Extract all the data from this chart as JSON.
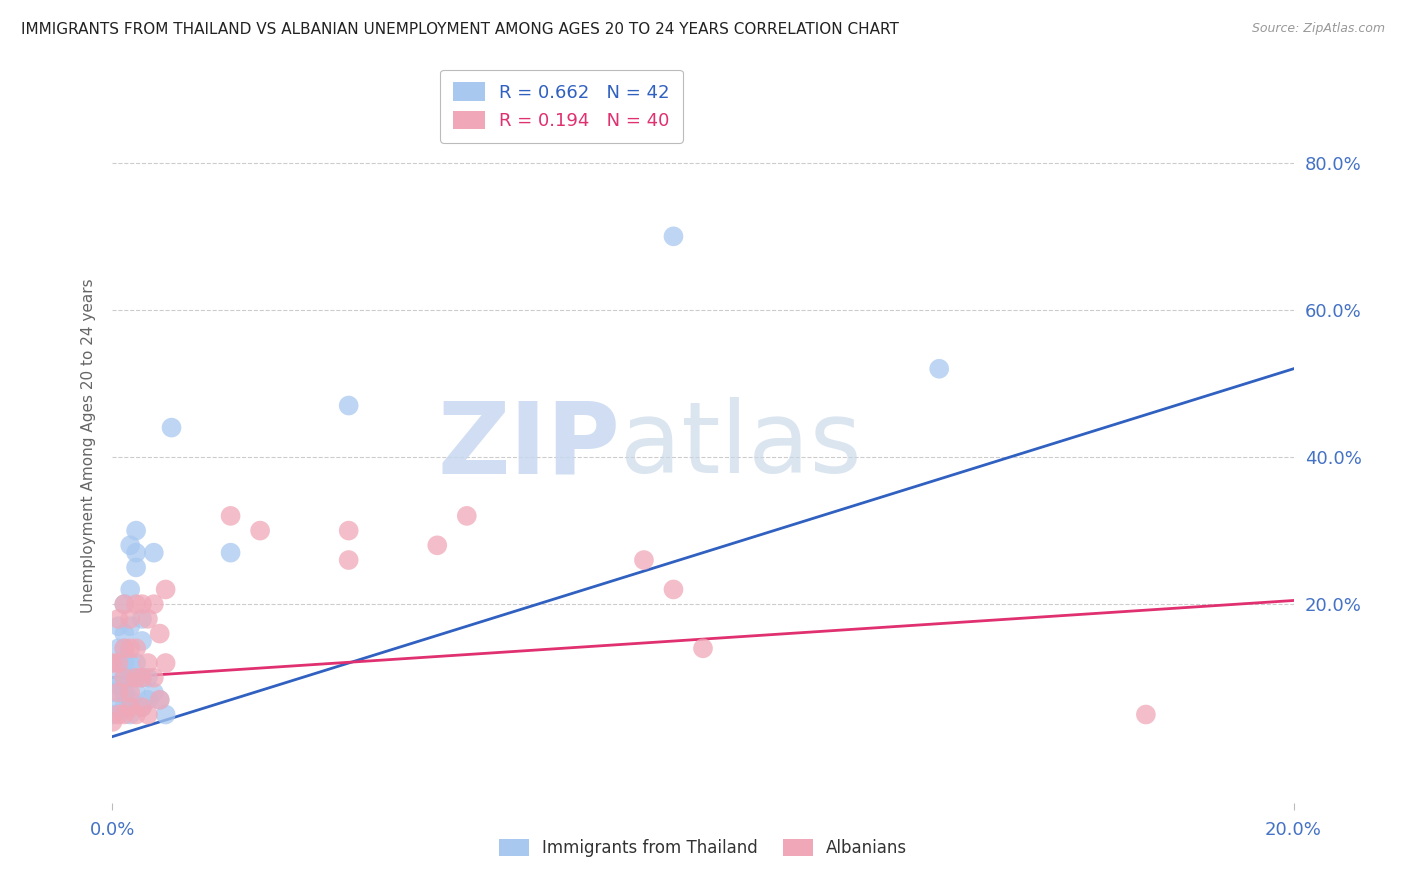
{
  "title": "IMMIGRANTS FROM THAILAND VS ALBANIAN UNEMPLOYMENT AMONG AGES 20 TO 24 YEARS CORRELATION CHART",
  "source": "Source: ZipAtlas.com",
  "ylabel": "Unemployment Among Ages 20 to 24 years",
  "legend1_label": "Immigrants from Thailand",
  "legend2_label": "Albanians",
  "R1": 0.662,
  "N1": 42,
  "R2": 0.194,
  "N2": 40,
  "xlim": [
    0.0,
    0.2
  ],
  "ylim": [
    -0.07,
    0.9
  ],
  "ytick_labels": [
    "20.0%",
    "40.0%",
    "60.0%",
    "80.0%"
  ],
  "ytick_values": [
    0.2,
    0.4,
    0.6,
    0.8
  ],
  "grid_color": "#cccccc",
  "blue_color": "#a8c8f0",
  "pink_color": "#f0a8b8",
  "blue_line_color": "#3060c0",
  "pink_line_color": "#e03070",
  "title_color": "#222222",
  "axis_label_color": "#666666",
  "tick_color": "#4472C4",
  "blue_dots_x": [
    0.0,
    0.0,
    0.001,
    0.001,
    0.001,
    0.001,
    0.001,
    0.001,
    0.002,
    0.002,
    0.002,
    0.002,
    0.002,
    0.002,
    0.002,
    0.003,
    0.003,
    0.003,
    0.003,
    0.003,
    0.003,
    0.003,
    0.004,
    0.004,
    0.004,
    0.004,
    0.004,
    0.005,
    0.005,
    0.005,
    0.005,
    0.006,
    0.006,
    0.007,
    0.007,
    0.008,
    0.009,
    0.01,
    0.02,
    0.04,
    0.095,
    0.14
  ],
  "blue_dots_y": [
    0.05,
    0.08,
    0.06,
    0.09,
    0.1,
    0.12,
    0.14,
    0.17,
    0.06,
    0.08,
    0.1,
    0.12,
    0.14,
    0.16,
    0.2,
    0.05,
    0.07,
    0.1,
    0.12,
    0.17,
    0.22,
    0.28,
    0.08,
    0.12,
    0.25,
    0.27,
    0.3,
    0.06,
    0.1,
    0.15,
    0.18,
    0.07,
    0.1,
    0.08,
    0.27,
    0.07,
    0.05,
    0.44,
    0.27,
    0.47,
    0.7,
    0.52
  ],
  "pink_dots_x": [
    0.0,
    0.0,
    0.001,
    0.001,
    0.001,
    0.001,
    0.002,
    0.002,
    0.002,
    0.002,
    0.003,
    0.003,
    0.003,
    0.003,
    0.004,
    0.004,
    0.004,
    0.004,
    0.005,
    0.005,
    0.005,
    0.006,
    0.006,
    0.006,
    0.007,
    0.007,
    0.008,
    0.008,
    0.009,
    0.009,
    0.02,
    0.025,
    0.04,
    0.04,
    0.055,
    0.06,
    0.09,
    0.095,
    0.1,
    0.175
  ],
  "pink_dots_y": [
    0.04,
    0.12,
    0.05,
    0.08,
    0.12,
    0.18,
    0.05,
    0.1,
    0.14,
    0.2,
    0.06,
    0.08,
    0.14,
    0.18,
    0.05,
    0.1,
    0.14,
    0.2,
    0.06,
    0.1,
    0.2,
    0.05,
    0.12,
    0.18,
    0.1,
    0.2,
    0.07,
    0.16,
    0.12,
    0.22,
    0.32,
    0.3,
    0.26,
    0.3,
    0.28,
    0.32,
    0.26,
    0.22,
    0.14,
    0.05
  ],
  "blue_trend_x0": 0.0,
  "blue_trend_y0": 0.02,
  "blue_trend_x1": 0.2,
  "blue_trend_y1": 0.52,
  "pink_trend_x0": 0.0,
  "pink_trend_y0": 0.1,
  "pink_trend_x1": 0.2,
  "pink_trend_y1": 0.205
}
